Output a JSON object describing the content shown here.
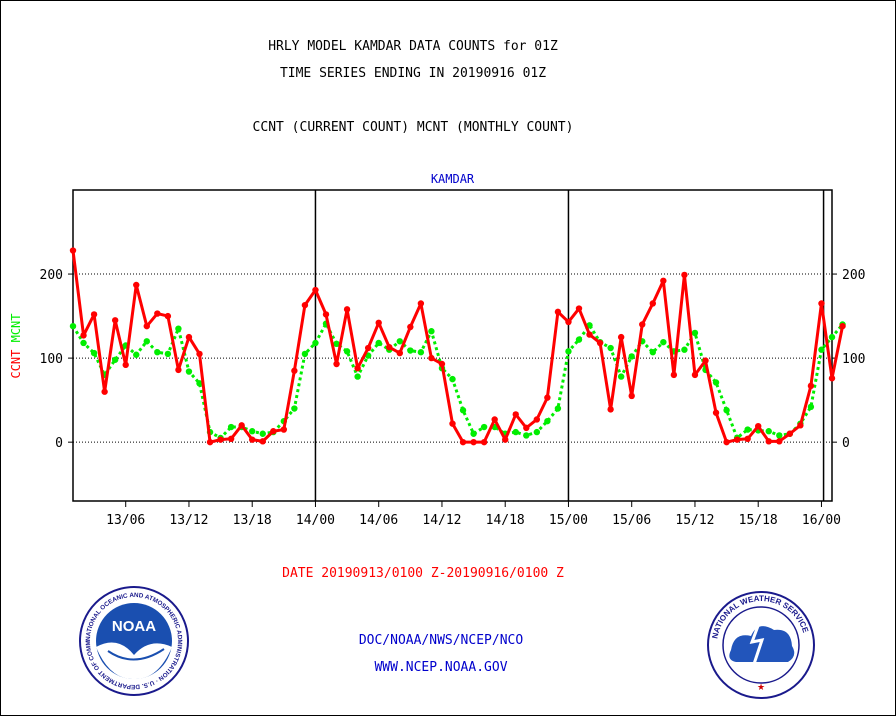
{
  "header": {
    "line1": "HRLY MODEL KAMDAR DATA COUNTS for 01Z",
    "line2": "TIME SERIES ENDING IN 20190916 01Z",
    "line3": "CCNT (CURRENT COUNT) MCNT (MONTHLY COUNT)"
  },
  "footer": {
    "date_range": "DATE 20190913/0100 Z-20190916/0100 Z",
    "org": "DOC/NOAA/NWS/NCEP/NCO",
    "url": "WWW.NCEP.NOAA.GOV"
  },
  "logos": {
    "noaa": {
      "label": "NOAA",
      "ring_text": "NATIONAL OCEANIC AND ATMOSPHERIC ADMINISTRATION · U.S. DEPARTMENT OF COMMERCE"
    },
    "nws": {
      "ring_text": "NATIONAL WEATHER SERVICE"
    }
  },
  "colors": {
    "ccnt": "#ff0000",
    "mcnt": "#00ee00",
    "title_blue": "#0000cc",
    "grid": "#000000"
  },
  "chart_data": {
    "type": "line",
    "title": "KAMDAR",
    "ylabel_left": [
      "CCNT",
      "MCNT"
    ],
    "ylim": [
      -70,
      300
    ],
    "yticks": [
      0,
      100,
      200
    ],
    "x_ticks": [
      "13/06",
      "13/12",
      "13/18",
      "14/00",
      "14/06",
      "14/12",
      "14/18",
      "15/00",
      "15/06",
      "15/12",
      "15/18",
      "16/00"
    ],
    "x_tick_hours": [
      5,
      11,
      17,
      23,
      29,
      35,
      41,
      47,
      53,
      59,
      65,
      71
    ],
    "day_boundaries_hours": [
      23,
      47,
      71.2
    ],
    "x_range_hours": [
      0,
      72
    ],
    "series": [
      {
        "name": "CCNT",
        "values": [
          228,
          127,
          152,
          60,
          145,
          92,
          187,
          138,
          153,
          150,
          86,
          125,
          105,
          0,
          3,
          4,
          20,
          3,
          1,
          13,
          15,
          85,
          163,
          181,
          152,
          93,
          158,
          88,
          112,
          142,
          113,
          106,
          137,
          165,
          100,
          93,
          22,
          0,
          0,
          0,
          27,
          3,
          33,
          17,
          27,
          53,
          155,
          143,
          159,
          128,
          118,
          39,
          125,
          55,
          140,
          165,
          192,
          80,
          199,
          80,
          97,
          35,
          0,
          3,
          4,
          19,
          1,
          1,
          10,
          20,
          67,
          165,
          76,
          138
        ]
      },
      {
        "name": "MCNT",
        "values": [
          138,
          118,
          106,
          80,
          98,
          115,
          104,
          120,
          107,
          105,
          135,
          84,
          70,
          12,
          5,
          18,
          18,
          13,
          10,
          12,
          25,
          40,
          105,
          118,
          141,
          117,
          108,
          78,
          103,
          118,
          110,
          120,
          109,
          107,
          132,
          88,
          75,
          38,
          10,
          18,
          18,
          10,
          12,
          8,
          12,
          25,
          40,
          108,
          122,
          139,
          119,
          112,
          78,
          102,
          120,
          107,
          119,
          108,
          110,
          130,
          86,
          71,
          38,
          5,
          15,
          14,
          13,
          8,
          10,
          22,
          42,
          110,
          125,
          140
        ]
      }
    ]
  }
}
